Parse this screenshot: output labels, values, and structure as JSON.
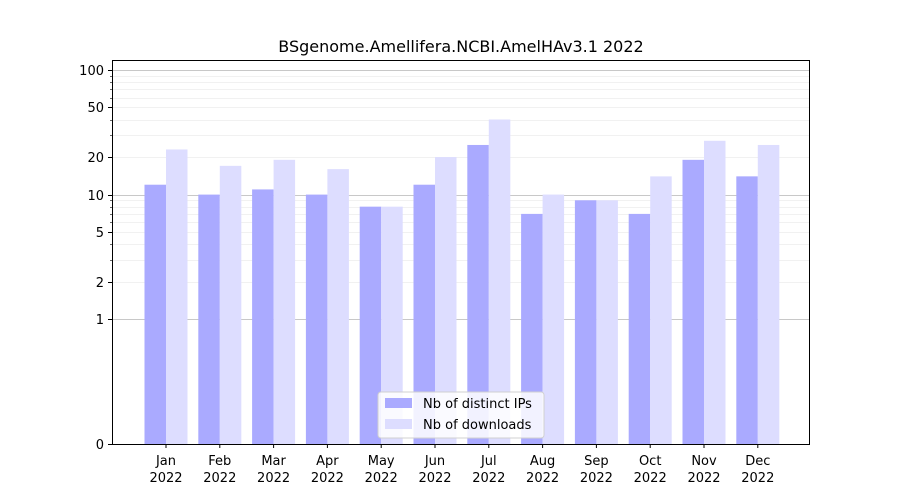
{
  "chart_data": {
    "type": "bar",
    "title": "BSgenome.Amellifera.NCBI.AmelHAv3.1 2022",
    "xlabel": "",
    "ylabel": "",
    "y_scale": "symlog",
    "ylim": [
      0,
      120
    ],
    "y_ticks": [
      {
        "value": 0,
        "label": "0"
      },
      {
        "value": 1,
        "label": "1"
      },
      {
        "value": 2,
        "label": "2"
      },
      {
        "value": 5,
        "label": "5"
      },
      {
        "value": 10,
        "label": "10"
      },
      {
        "value": 20,
        "label": "20"
      },
      {
        "value": 50,
        "label": "50"
      },
      {
        "value": 100,
        "label": "100"
      }
    ],
    "categories": [
      {
        "month": "Jan",
        "year": "2022"
      },
      {
        "month": "Feb",
        "year": "2022"
      },
      {
        "month": "Mar",
        "year": "2022"
      },
      {
        "month": "Apr",
        "year": "2022"
      },
      {
        "month": "May",
        "year": "2022"
      },
      {
        "month": "Jun",
        "year": "2022"
      },
      {
        "month": "Jul",
        "year": "2022"
      },
      {
        "month": "Aug",
        "year": "2022"
      },
      {
        "month": "Sep",
        "year": "2022"
      },
      {
        "month": "Oct",
        "year": "2022"
      },
      {
        "month": "Nov",
        "year": "2022"
      },
      {
        "month": "Dec",
        "year": "2022"
      }
    ],
    "series": [
      {
        "name": "Nb of distinct IPs",
        "color": "#aaaaff",
        "values": [
          12,
          10,
          11,
          10,
          8,
          12,
          25,
          7,
          9,
          7,
          19,
          14
        ]
      },
      {
        "name": "Nb of downloads",
        "color": "#ddddff",
        "values": [
          23,
          17,
          19,
          16,
          8,
          20,
          40,
          10,
          9,
          14,
          27,
          25
        ]
      }
    ],
    "grid": true,
    "legend_position": "bottom-center"
  }
}
